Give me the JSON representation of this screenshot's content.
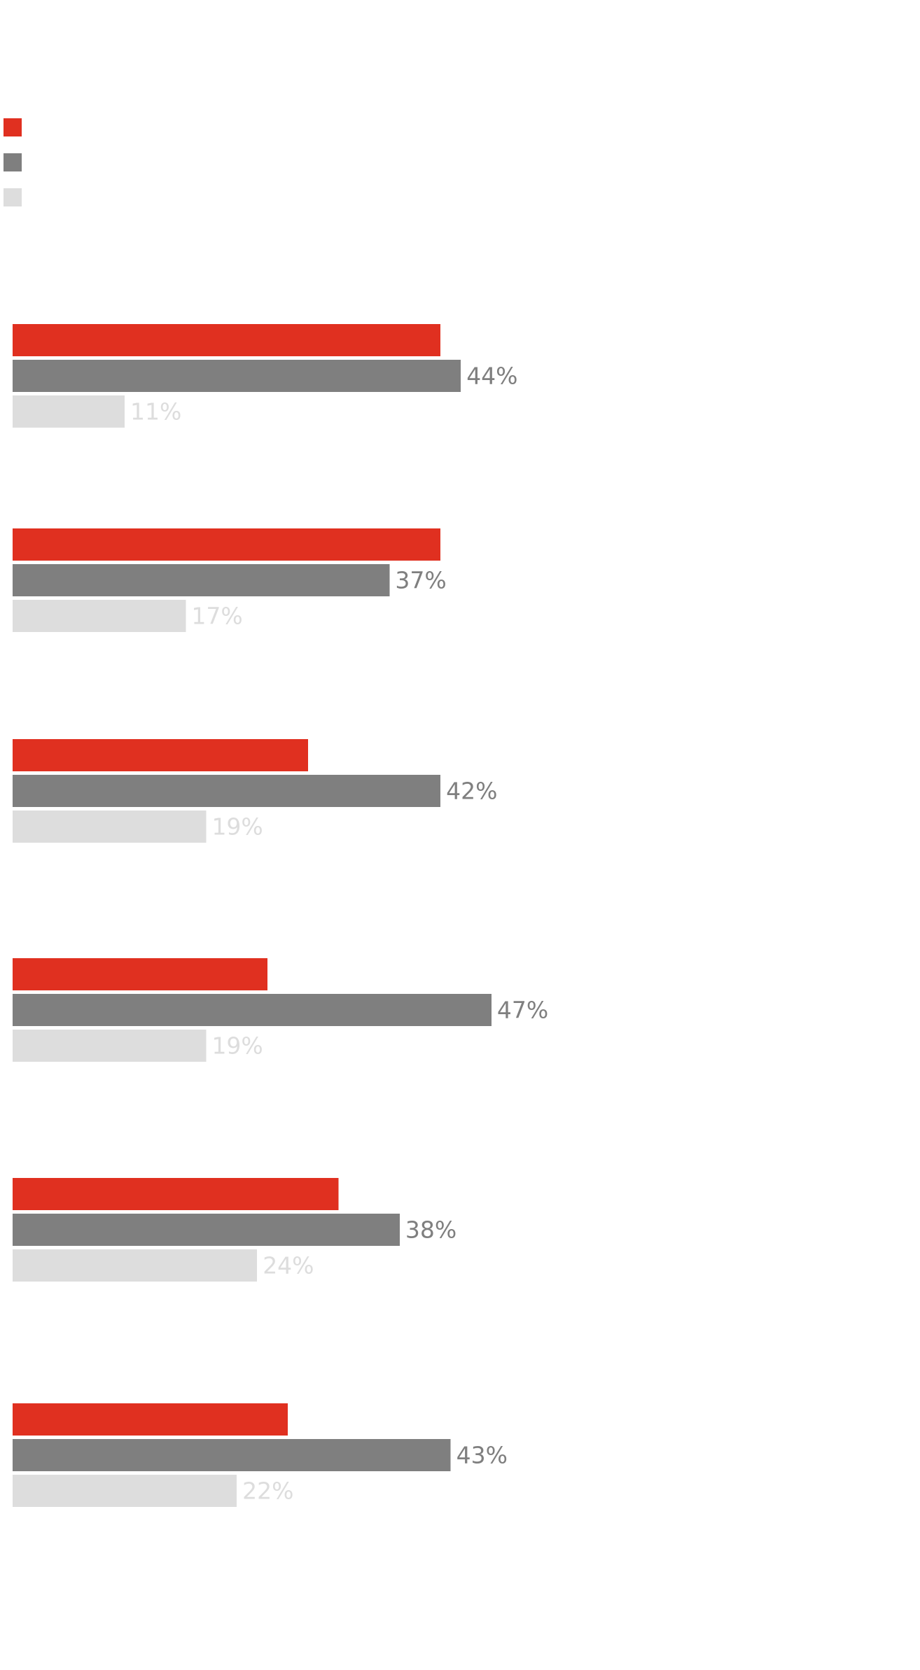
{
  "chart_data": {
    "type": "bar",
    "orientation": "horizontal",
    "title": "",
    "xlabel": "",
    "ylabel": "",
    "xlim": [
      0,
      100
    ],
    "grid": false,
    "legend": "top-left",
    "categories": [
      "",
      "",
      "",
      "",
      "",
      ""
    ],
    "series": [
      {
        "name": "",
        "color": "#e03020",
        "show_labels": false,
        "values": [
          42,
          42,
          29,
          25,
          32,
          27
        ]
      },
      {
        "name": "",
        "color": "#7f7f7f",
        "show_labels": true,
        "values": [
          44,
          37,
          42,
          47,
          38,
          43
        ]
      },
      {
        "name": "",
        "color": "#dddddd",
        "show_labels": true,
        "values": [
          11,
          17,
          19,
          19,
          24,
          22
        ]
      }
    ],
    "value_suffix": "%"
  }
}
